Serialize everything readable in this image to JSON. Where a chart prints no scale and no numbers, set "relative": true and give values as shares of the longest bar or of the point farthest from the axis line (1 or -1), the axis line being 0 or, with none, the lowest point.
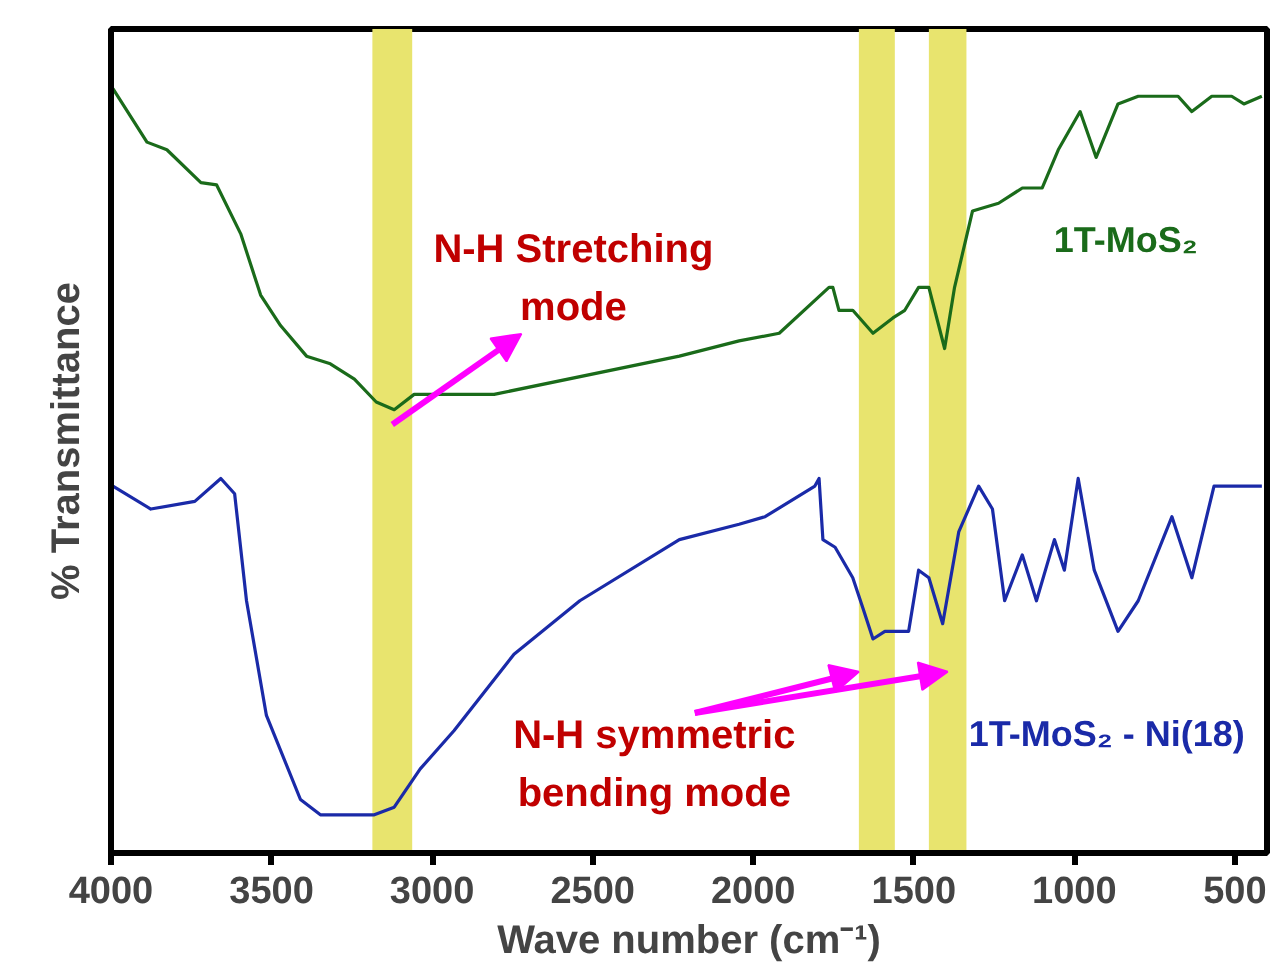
{
  "chart_data": {
    "type": "line",
    "relative": true,
    "xlabel": "Wave number (cm⁻¹)",
    "ylabel": "% Transmittance",
    "xlim": [
      4000,
      400
    ],
    "xticks": [
      4000,
      3500,
      3000,
      2500,
      2000,
      1500,
      1000,
      500
    ],
    "grid": false,
    "series": [
      {
        "name": "1T-MoS₂",
        "color": "#1a6b1a",
        "x": [
          3994,
          3888,
          3826,
          3720,
          3671,
          3596,
          3534,
          3472,
          3391,
          3317,
          3242,
          3174,
          3118,
          3056,
          2932,
          2807,
          2230,
          2044,
          1919,
          1764,
          1752,
          1733,
          1690,
          1627,
          1565,
          1528,
          1485,
          1453,
          1404,
          1373,
          1317,
          1236,
          1162,
          1100,
          1050,
          982,
          932,
          864,
          801,
          677,
          634,
          572,
          510,
          472,
          416
        ],
        "values": [
          1.0,
          0.93,
          0.92,
          0.877,
          0.874,
          0.81,
          0.73,
          0.69,
          0.65,
          0.64,
          0.62,
          0.59,
          0.58,
          0.6,
          0.6,
          0.6,
          0.65,
          0.67,
          0.68,
          0.74,
          0.74,
          0.71,
          0.71,
          0.68,
          0.7,
          0.71,
          0.74,
          0.74,
          0.66,
          0.74,
          0.84,
          0.85,
          0.87,
          0.87,
          0.92,
          0.97,
          0.91,
          0.98,
          0.99,
          0.99,
          0.97,
          0.99,
          0.99,
          0.98,
          0.99
        ]
      },
      {
        "name": "1T-MoS₂ - Ni(18)",
        "color": "#1a2aa8",
        "x": [
          3994,
          3876,
          3739,
          3658,
          3615,
          3578,
          3516,
          3410,
          3348,
          3180,
          3118,
          3037,
          2932,
          2745,
          2540,
          2230,
          2044,
          1963,
          1808,
          1795,
          1783,
          1745,
          1690,
          1658,
          1627,
          1590,
          1516,
          1485,
          1453,
          1410,
          1360,
          1298,
          1255,
          1217,
          1162,
          1118,
          1062,
          1031,
          988,
          938,
          864,
          801,
          696,
          634,
          565,
          522,
          491,
          447,
          416
        ],
        "values": [
          0.48,
          0.45,
          0.46,
          0.49,
          0.47,
          0.33,
          0.18,
          0.07,
          0.05,
          0.05,
          0.06,
          0.11,
          0.16,
          0.26,
          0.33,
          0.41,
          0.43,
          0.44,
          0.48,
          0.49,
          0.41,
          0.4,
          0.36,
          0.32,
          0.28,
          0.29,
          0.29,
          0.37,
          0.36,
          0.3,
          0.42,
          0.48,
          0.45,
          0.33,
          0.39,
          0.33,
          0.41,
          0.37,
          0.49,
          0.37,
          0.29,
          0.33,
          0.44,
          0.36,
          0.48,
          0.48,
          0.48,
          0.48,
          0.48
        ]
      }
    ],
    "bands": [
      {
        "axis": "x",
        "from": 3186,
        "to": 3062,
        "color": "#e8e46e"
      },
      {
        "axis": "x",
        "from": 1671,
        "to": 1559,
        "color": "#e8e46e"
      },
      {
        "axis": "x",
        "from": 1453,
        "to": 1336,
        "color": "#e8e46e"
      }
    ],
    "annotations": [
      "N-H Stretching mode",
      "N-H symmetric bending mode"
    ]
  }
}
